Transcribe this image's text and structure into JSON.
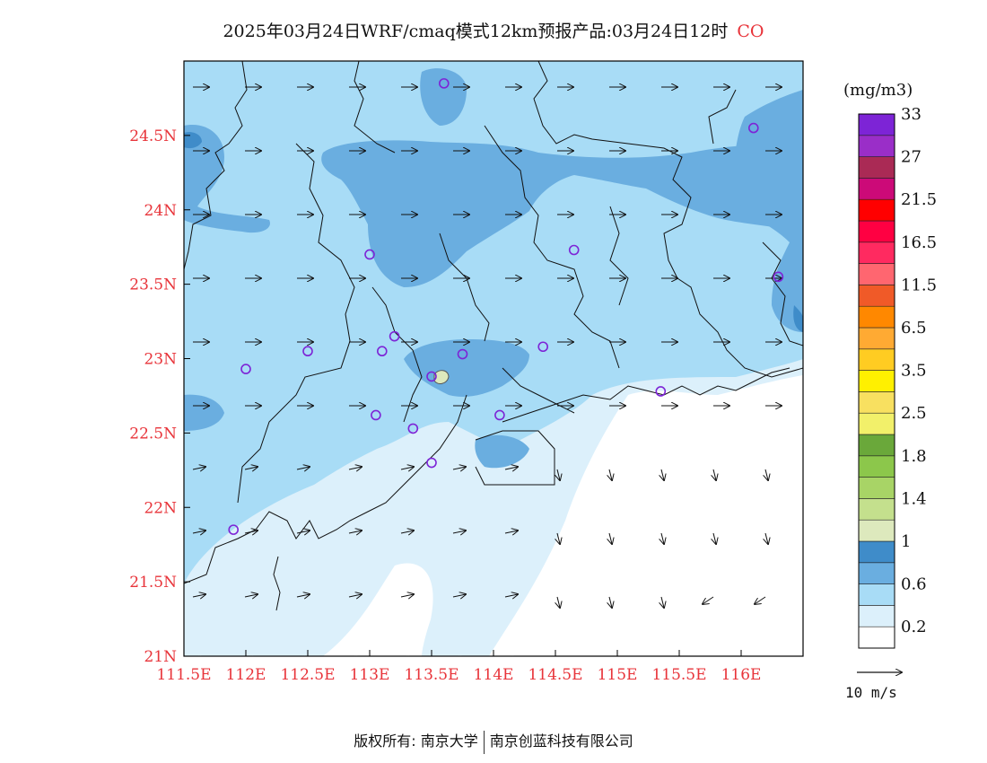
{
  "title": {
    "main": "2025年03月24日WRF/cmaq模式12km预报产品:03月24日12时",
    "species": "CO"
  },
  "axes": {
    "x_ticks": [
      "111.5E",
      "112E",
      "112.5E",
      "113E",
      "113.5E",
      "114E",
      "114.5E",
      "115E",
      "115.5E",
      "116E"
    ],
    "y_ticks": [
      "21N",
      "21.5N",
      "22N",
      "22.5N",
      "23N",
      "23.5N",
      "24N",
      "24.5N"
    ]
  },
  "colorbar": {
    "unit": "(mg/m3)",
    "colors": [
      "#ffffff",
      "#dcf0fb",
      "#a8dcf6",
      "#6aaee0",
      "#3f8cc9",
      "#dde9bd",
      "#c4e08d",
      "#a8d466",
      "#8cc74b",
      "#6aa83a",
      "#f2f06a",
      "#f8e060",
      "#fff000",
      "#ffcc22",
      "#ffaa33",
      "#ff8800",
      "#f05a28",
      "#ff6670",
      "#ff2a60",
      "#ff0042",
      "#ff0000",
      "#cc0a78",
      "#aa2a55",
      "#9a2ec8",
      "#7d24d6"
    ],
    "labels": [
      "0.2",
      "0.6",
      "1",
      "1.4",
      "1.8",
      "2.5",
      "3.5",
      "6.5",
      "11.5",
      "16.5",
      "21.5",
      "27",
      "33"
    ]
  },
  "vector_ref": "10  m/s",
  "footer": {
    "left": "版权所有: 南京大学",
    "right": "南京创蓝科技有限公司"
  },
  "map_data": {
    "lon_range": [
      111.5,
      116.5
    ],
    "lat_range": [
      21.0,
      25.0
    ],
    "stations": [
      {
        "lon": 113.6,
        "lat": 24.85
      },
      {
        "lon": 116.1,
        "lat": 24.55
      },
      {
        "lon": 113.0,
        "lat": 23.7
      },
      {
        "lon": 114.65,
        "lat": 23.73
      },
      {
        "lon": 116.3,
        "lat": 23.55
      },
      {
        "lon": 112.5,
        "lat": 23.05
      },
      {
        "lon": 113.1,
        "lat": 23.05
      },
      {
        "lon": 113.2,
        "lat": 23.15
      },
      {
        "lon": 113.75,
        "lat": 23.03
      },
      {
        "lon": 114.4,
        "lat": 23.08
      },
      {
        "lon": 112.0,
        "lat": 22.93
      },
      {
        "lon": 113.5,
        "lat": 22.88
      },
      {
        "lon": 115.35,
        "lat": 22.78
      },
      {
        "lon": 113.05,
        "lat": 22.62
      },
      {
        "lon": 113.35,
        "lat": 22.53
      },
      {
        "lon": 114.05,
        "lat": 22.62
      },
      {
        "lon": 113.5,
        "lat": 22.3
      },
      {
        "lon": 111.9,
        "lat": 21.85
      }
    ]
  }
}
